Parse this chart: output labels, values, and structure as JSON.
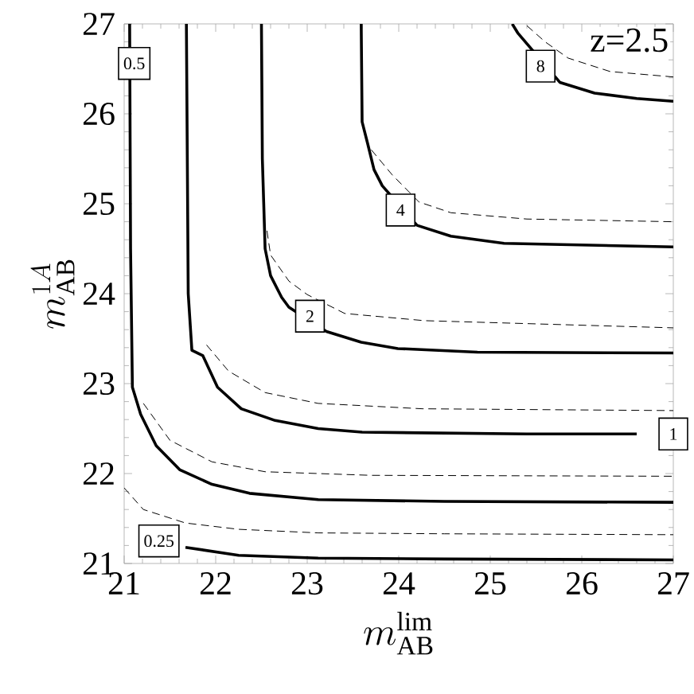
{
  "chart_data": {
    "type": "line",
    "xlabel": "m_{\\mathrm{AB}}^{\\mathrm{lim}}",
    "ylabel": "m_{\\mathrm{AB}}^{1A}",
    "xlim": [
      21,
      27
    ],
    "ylim": [
      21,
      27
    ],
    "xticks": [
      21,
      22,
      23,
      24,
      25,
      26,
      27
    ],
    "yticks": [
      21,
      22,
      23,
      24,
      25,
      26,
      27
    ],
    "grid": false,
    "marker": "none",
    "series": [
      {
        "color": "#000000",
        "line_style": "solid",
        "x": [
          21.67,
          22.25,
          23.12,
          24.5,
          27
        ],
        "values": [
          21.18,
          21.09,
          21.06,
          21.05,
          21.04
        ]
      },
      {
        "color": "#000000",
        "line_style": "dashed",
        "x": [
          21.0,
          21.21,
          21.67,
          22.25,
          23.12,
          24.5,
          27
        ],
        "values": [
          21.84,
          21.6,
          21.45,
          21.38,
          21.34,
          21.33,
          21.32
        ]
      },
      {
        "color": "#000000",
        "line_style": "solid",
        "x": [
          21.06,
          21.07,
          21.09,
          21.18,
          21.35,
          21.61,
          21.96,
          22.37,
          23.12,
          24.5,
          27
        ],
        "values": [
          27,
          24.5,
          22.96,
          22.66,
          22.31,
          22.04,
          21.88,
          21.78,
          21.71,
          21.69,
          21.68
        ]
      },
      {
        "color": "#000000",
        "line_style": "dashed",
        "x": [
          21.21,
          21.5,
          21.96,
          22.54,
          23.7,
          27
        ],
        "values": [
          22.78,
          22.37,
          22.13,
          22.02,
          21.98,
          21.97
        ]
      },
      {
        "color": "#000000",
        "line_style": "solid",
        "x": [
          21.68,
          21.7,
          21.74,
          21.86,
          22.02,
          22.28,
          22.65,
          23.12,
          23.6,
          25.4,
          26.6
        ],
        "values": [
          27,
          24,
          23.37,
          23.31,
          22.96,
          22.72,
          22.59,
          22.5,
          22.46,
          22.44,
          22.44
        ]
      },
      {
        "color": "#000000",
        "line_style": "dashed",
        "x": [
          21.9,
          22.14,
          22.54,
          23.12,
          24.26,
          27
        ],
        "values": [
          23.43,
          23.14,
          22.9,
          22.78,
          22.72,
          22.7
        ]
      },
      {
        "color": "#000000",
        "line_style": "solid",
        "x": [
          22.5,
          22.51,
          22.54,
          22.6,
          22.72,
          22.8,
          23.21,
          23.59,
          23.99,
          24.86,
          27
        ],
        "values": [
          27,
          25.5,
          24.5,
          24.2,
          23.96,
          23.85,
          23.58,
          23.46,
          23.39,
          23.35,
          23.34
        ]
      },
      {
        "color": "#000000",
        "line_style": "dashed",
        "x": [
          22.56,
          22.6,
          22.8,
          23.0,
          23.41,
          24.28,
          27
        ],
        "values": [
          24.7,
          24.43,
          24.14,
          23.99,
          23.78,
          23.7,
          23.62
        ]
      },
      {
        "color": "#000000",
        "line_style": "solid",
        "x": [
          23.59,
          23.6,
          23.66,
          23.73,
          23.82,
          24.2,
          24.57,
          25.15,
          27
        ],
        "values": [
          27,
          25.91,
          25.67,
          25.38,
          25.2,
          24.76,
          24.64,
          24.56,
          24.52
        ]
      },
      {
        "color": "#000000",
        "line_style": "dashed",
        "x": [
          23.7,
          23.93,
          24.22,
          24.57,
          25.4,
          27
        ],
        "values": [
          25.6,
          25.32,
          25.02,
          24.9,
          24.83,
          24.8
        ]
      },
      {
        "color": "#000000",
        "line_style": "solid",
        "x": [
          25.24,
          25.3,
          25.76,
          26.14,
          26.6,
          27
        ],
        "values": [
          27,
          26.9,
          26.35,
          26.23,
          26.17,
          26.14
        ]
      },
      {
        "color": "#000000",
        "line_style": "dashed",
        "x": [
          25.4,
          25.6,
          25.85,
          26.31,
          27
        ],
        "values": [
          26.98,
          26.8,
          26.62,
          26.47,
          26.41
        ]
      }
    ],
    "annotations": [
      {
        "text": "0.25",
        "x": 21.38,
        "y": 21.25
      },
      {
        "text": "0.5",
        "x": 21.11,
        "y": 26.56
      },
      {
        "text": "1",
        "x": 27.0,
        "y": 22.44
      },
      {
        "text": "2",
        "x": 23.03,
        "y": 23.75
      },
      {
        "text": "4",
        "x": 24.02,
        "y": 24.93
      },
      {
        "text": "8",
        "x": 25.55,
        "y": 26.53
      },
      "z=2.5"
    ]
  }
}
